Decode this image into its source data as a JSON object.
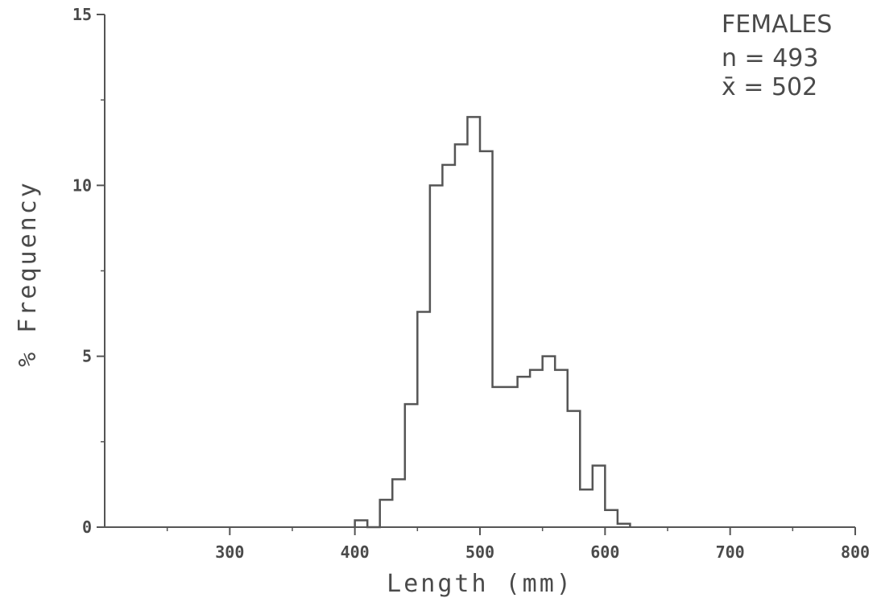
{
  "chart_data": {
    "type": "histogram",
    "xlabel": "Length (mm)",
    "ylabel": "% Frequency",
    "xlim": [
      200,
      800
    ],
    "ylim": [
      0,
      15
    ],
    "x_ticks": [
      300,
      400,
      500,
      600,
      700,
      800
    ],
    "y_ticks": [
      0,
      5,
      10,
      15
    ],
    "x_tick_labels": [
      "300",
      "400",
      "500",
      "600",
      "700",
      "800"
    ],
    "y_tick_labels": [
      "0",
      "5",
      "10",
      "15"
    ],
    "bin_width": 10,
    "bins": [
      {
        "x0": 400,
        "x1": 410,
        "value": 0.2
      },
      {
        "x0": 410,
        "x1": 420,
        "value": 0.0
      },
      {
        "x0": 420,
        "x1": 430,
        "value": 0.8
      },
      {
        "x0": 430,
        "x1": 440,
        "value": 1.4
      },
      {
        "x0": 440,
        "x1": 450,
        "value": 3.6
      },
      {
        "x0": 450,
        "x1": 460,
        "value": 6.3
      },
      {
        "x0": 460,
        "x1": 470,
        "value": 10.0
      },
      {
        "x0": 470,
        "x1": 480,
        "value": 10.6
      },
      {
        "x0": 480,
        "x1": 490,
        "value": 11.2
      },
      {
        "x0": 490,
        "x1": 500,
        "value": 12.0
      },
      {
        "x0": 500,
        "x1": 510,
        "value": 11.0
      },
      {
        "x0": 510,
        "x1": 520,
        "value": 4.1
      },
      {
        "x0": 520,
        "x1": 530,
        "value": 4.1
      },
      {
        "x0": 530,
        "x1": 540,
        "value": 4.4
      },
      {
        "x0": 540,
        "x1": 550,
        "value": 4.6
      },
      {
        "x0": 550,
        "x1": 560,
        "value": 5.0
      },
      {
        "x0": 560,
        "x1": 570,
        "value": 4.6
      },
      {
        "x0": 570,
        "x1": 580,
        "value": 3.4
      },
      {
        "x0": 580,
        "x1": 590,
        "value": 1.1
      },
      {
        "x0": 590,
        "x1": 600,
        "value": 1.8
      },
      {
        "x0": 600,
        "x1": 610,
        "value": 0.5
      },
      {
        "x0": 610,
        "x1": 620,
        "value": 0.1
      }
    ],
    "annotations": {
      "group": "FEMALES",
      "n_label": "n = 493",
      "mean_label": "x̄ = 502"
    },
    "grid": false,
    "line_color": "#555555"
  }
}
